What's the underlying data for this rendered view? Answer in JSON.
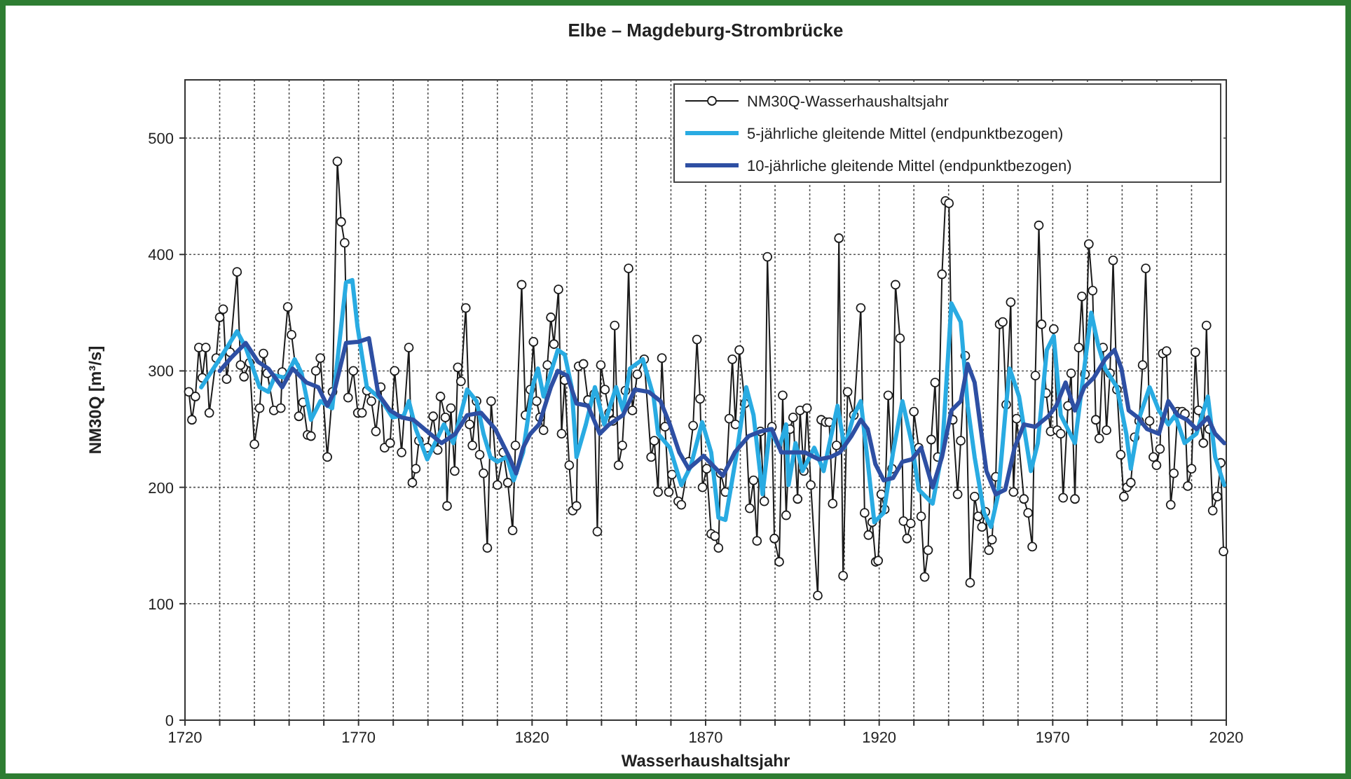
{
  "chart_data": {
    "type": "line",
    "title": "Elbe – Magdeburg-Strombrücke",
    "xlabel": "Wasserhaushaltsjahr",
    "ylabel": "NM30Q [m³/s]",
    "xlim": [
      1720,
      2020
    ],
    "xticks": [
      1720,
      {
        "value": 1730,
        "label": null
      },
      {
        "value": 1740,
        "label": null
      },
      {
        "value": 1750,
        "label": null
      },
      {
        "value": 1760,
        "label": null
      },
      1770,
      {
        "value": 1780,
        "label": null
      },
      {
        "value": 1790,
        "label": null
      },
      {
        "value": 1800,
        "label": null
      },
      {
        "value": 1810,
        "label": null
      },
      1820,
      {
        "value": 1830,
        "label": null
      },
      {
        "value": 1840,
        "label": null
      },
      {
        "value": 1850,
        "label": null
      },
      {
        "value": 1860,
        "label": null
      },
      1870,
      {
        "value": 1880,
        "label": null
      },
      {
        "value": 1890,
        "label": null
      },
      {
        "value": 1900,
        "label": null
      },
      {
        "value": 1910,
        "label": null
      },
      1920,
      {
        "value": 1930,
        "label": null
      },
      {
        "value": 1940,
        "label": null
      },
      {
        "value": 1950,
        "label": null
      },
      {
        "value": 1960,
        "label": null
      },
      1970,
      {
        "value": 1980,
        "label": null
      },
      {
        "value": 1990,
        "label": null
      },
      {
        "value": 2000,
        "label": null
      },
      {
        "value": 2010,
        "label": null
      },
      2020
    ],
    "ylim": [
      0,
      550
    ],
    "yticks": [
      0,
      100,
      200,
      300,
      400,
      500
    ],
    "grid": true,
    "legend": "top right",
    "series": [
      {
        "name": "NM30Q-Wasserhaushaltsjahr",
        "color": "#1a1a1a",
        "marker": "circle",
        "x": [
          1721.1,
          1722,
          1723,
          1724,
          1725,
          1726,
          1727,
          1729,
          1730,
          1731,
          1732,
          1733,
          1735,
          1736,
          1737,
          1738.6,
          1740,
          1741.5,
          1742.6,
          1743.7,
          1745.6,
          1747.6,
          1748,
          1749.6,
          1750.7,
          1751.8,
          1752.8,
          1754,
          1755.3,
          1756.3,
          1757.7,
          1759,
          1761,
          1762.5,
          1763.9,
          1765,
          1766,
          1767,
          1768.5,
          1769.8,
          1771,
          1772.4,
          1773.7,
          1775,
          1776.4,
          1777.5,
          1779.1,
          1780.4,
          1782.4,
          1784.5,
          1785.5,
          1786.5,
          1787.4,
          1789.8,
          1791.5,
          1792.8,
          1793.6,
          1795,
          1795.5,
          1796.6,
          1797.7,
          1798.6,
          1799.5,
          1800.9,
          1802,
          1802.8,
          1804,
          1804.9,
          1806,
          1807.1,
          1808.2,
          1810,
          1811.7,
          1813,
          1814.4,
          1815.2,
          1817,
          1818.1,
          1819.5,
          1820.4,
          1821.3,
          1822.3,
          1823.3,
          1824.4,
          1825.4,
          1826.3,
          1827.6,
          1828.5,
          1829.4,
          1830.7,
          1831.7,
          1832.8,
          1833.4,
          1834.8,
          1836.1,
          1837.9,
          1838.8,
          1839.8,
          1841,
          1842.2,
          1843.3,
          1843.8,
          1844.9,
          1846,
          1846.9,
          1847.8,
          1848.9,
          1850.3,
          1852.3,
          1854.3,
          1855.2,
          1856.3,
          1857.4,
          1858.3,
          1859.4,
          1860.3,
          1862.1,
          1863,
          1865.1,
          1866.4,
          1867.5,
          1868.4,
          1869.1,
          1870.3,
          1871.6,
          1872.7,
          1873.7,
          1874.3,
          1875.7,
          1876.8,
          1877.7,
          1878.6,
          1879.7,
          1881.3,
          1882.7,
          1883.8,
          1884.8,
          1885.8,
          1886.9,
          1887.8,
          1889.1,
          1889.8,
          1891.2,
          1892.2,
          1893.2,
          1894.3,
          1895.2,
          1896.5,
          1897.2,
          1898.3,
          1899.2,
          1900.3,
          1902.3,
          1903.3,
          1904.6,
          1905.6,
          1906.6,
          1907.7,
          1908.4,
          1909.6,
          1910.9,
          1912.7,
          1914.7,
          1915.8,
          1916.9,
          1918,
          1919,
          1919.7,
          1920.6,
          1921.6,
          1922.6,
          1923.7,
          1924.7,
          1926,
          1927,
          1928,
          1929.1,
          1930,
          1931.4,
          1932.1,
          1933.1,
          1934.1,
          1935,
          1936.1,
          1936.9,
          1938.1,
          1939.1,
          1940.1,
          1941.2,
          1942.6,
          1943.5,
          1944.8,
          1946.2,
          1947.5,
          1948.5,
          1949.6,
          1950.6,
          1951.6,
          1952.5,
          1953.6,
          1954.7,
          1955.6,
          1956.6,
          1957.9,
          1958.7,
          1959.6,
          1961.7,
          1962.9,
          1964.1,
          1965,
          1966,
          1966.8,
          1968.1,
          1969.4,
          1970.3,
          1971.3,
          1972.3,
          1973,
          1974.4,
          1975.3,
          1976.4,
          1977.5,
          1978.4,
          1979.3,
          1980.4,
          1981.5,
          1982.4,
          1983.4,
          1984.5,
          1985.5,
          1986.5,
          1987.4,
          1988.5,
          1989.6,
          1990.5,
          1991.4,
          1992.5,
          1993.6,
          1994.9,
          1995.9,
          1996.8,
          1997.9,
          1999,
          1999.9,
          2000.9,
          2001.7,
          2002.8,
          2004,
          2004.9,
          2006,
          2007.3,
          2008.1,
          2008.9,
          2010,
          2011.1,
          2012,
          2013.4,
          2014.3,
          2015.1,
          2016.1,
          2017.4,
          2018.4,
          2019.2
        ],
        "values": [
          282,
          258,
          278,
          320,
          294,
          320,
          264,
          311,
          346,
          353,
          293,
          316,
          385,
          305,
          295,
          307,
          237,
          268,
          315,
          298,
          266,
          268,
          299,
          355,
          331,
          304,
          261,
          273,
          245,
          244,
          300,
          311,
          226,
          282,
          480,
          428,
          410,
          277,
          300,
          264,
          264,
          283,
          274,
          248,
          286,
          234,
          238,
          300,
          230,
          320,
          204,
          216,
          240,
          234,
          261,
          232,
          278,
          260,
          184,
          268,
          214,
          303,
          291,
          354,
          254,
          236,
          274,
          228,
          212,
          148,
          274,
          202,
          230,
          204,
          163,
          236,
          374,
          262,
          284,
          325,
          274,
          260,
          249,
          305,
          346,
          323,
          370,
          246,
          292,
          219,
          180,
          184,
          304,
          306,
          275,
          280,
          162,
          305,
          284,
          264,
          257,
          339,
          219,
          236,
          283,
          388,
          266,
          297,
          310,
          226,
          240,
          196,
          311,
          252,
          196,
          211,
          188,
          185,
          222,
          253,
          327,
          276,
          200,
          216,
          160,
          158,
          148,
          212,
          196,
          259,
          310,
          254,
          318,
          272,
          182,
          206,
          154,
          248,
          188,
          398,
          252,
          156,
          136,
          279,
          176,
          250,
          260,
          190,
          266,
          214,
          268,
          202,
          107,
          258,
          256,
          256,
          186,
          236,
          414,
          124,
          282,
          262,
          354,
          178,
          159,
          170,
          136,
          137,
          194,
          181,
          279,
          216,
          374,
          328,
          171,
          156,
          169,
          265,
          234,
          175,
          123,
          146,
          241,
          290,
          226,
          383,
          446,
          444,
          258,
          194,
          240,
          313,
          118,
          192,
          175,
          166,
          179,
          146,
          155,
          209,
          340,
          342,
          271,
          359,
          196,
          259,
          190,
          178,
          149,
          296,
          425,
          340,
          281,
          248,
          336,
          249,
          246,
          191,
          270,
          298,
          190,
          320,
          364,
          297,
          409,
          369,
          258,
          242,
          320,
          249,
          298,
          395,
          284,
          228,
          192,
          200,
          204,
          243,
          257,
          305,
          388,
          257,
          226,
          219,
          233,
          315,
          317,
          185,
          212,
          265,
          265,
          263,
          201,
          216,
          316,
          266,
          238,
          339,
          250,
          180,
          192,
          221,
          145
        ]
      },
      {
        "name": "5-jährliche gleitende Mittel (endpunktbezogen)",
        "color": "#29abe2",
        "marker": "none",
        "x": [
          1724.7,
          1730.8,
          1735,
          1737.5,
          1741.5,
          1744,
          1746,
          1749,
          1751.6,
          1753.6,
          1756.3,
          1759,
          1762.4,
          1766.4,
          1768.2,
          1769.7,
          1772.4,
          1776.4,
          1779.8,
          1783.1,
          1784.5,
          1786.5,
          1789.8,
          1794.6,
          1797.3,
          1801.3,
          1804,
          1806,
          1808,
          1810,
          1812.7,
          1814.7,
          1817.4,
          1820.1,
          1821.7,
          1823.3,
          1827.4,
          1829.4,
          1831.4,
          1832.8,
          1835.5,
          1838.1,
          1840.8,
          1844.2,
          1846.2,
          1848.2,
          1851.9,
          1855,
          1856.3,
          1859.7,
          1863,
          1865.7,
          1869,
          1871.6,
          1873.7,
          1875.7,
          1879,
          1881.7,
          1883.8,
          1885.8,
          1886.4,
          1888.5,
          1891.2,
          1893.2,
          1893.9,
          1895.9,
          1897.9,
          1901.3,
          1904,
          1908,
          1910,
          1912.7,
          1914.7,
          1916.7,
          1918.6,
          1921.3,
          1924,
          1926.7,
          1929.4,
          1931.4,
          1935.4,
          1938.1,
          1940.8,
          1943.5,
          1945.5,
          1947.5,
          1950.2,
          1952.2,
          1954.3,
          1956.3,
          1957.6,
          1960.3,
          1963.7,
          1965.7,
          1968.3,
          1970.3,
          1972.3,
          1976.4,
          1978.4,
          1981.1,
          1983.1,
          1985.1,
          1988.5,
          1991.2,
          1992.5,
          1995.2,
          1997.9,
          2000.6,
          2003.3,
          2005.3,
          2008,
          2011.4,
          2014.7,
          2016.8,
          2019.4
        ],
        "values": [
          286,
          314,
          334,
          320,
          286,
          282,
          296,
          294,
          310,
          298,
          258,
          274,
          268,
          376,
          378,
          338,
          286,
          276,
          260,
          262,
          274,
          250,
          224,
          254,
          238,
          284,
          274,
          246,
          226,
          222,
          226,
          206,
          230,
          286,
          302,
          278,
          318,
          314,
          286,
          226,
          254,
          286,
          254,
          286,
          266,
          302,
          310,
          278,
          246,
          234,
          202,
          218,
          256,
          230,
          174,
          172,
          230,
          286,
          262,
          210,
          194,
          250,
          234,
          254,
          202,
          238,
          214,
          234,
          214,
          270,
          234,
          262,
          274,
          222,
          170,
          178,
          230,
          274,
          238,
          198,
          186,
          230,
          358,
          342,
          270,
          226,
          178,
          166,
          194,
          262,
          302,
          278,
          214,
          238,
          318,
          330,
          262,
          238,
          286,
          350,
          322,
          302,
          286,
          246,
          216,
          262,
          286,
          266,
          254,
          262,
          238,
          246,
          278,
          226,
          202
        ]
      },
      {
        "name": "10-jährliche gleitende Mittel (endpunktbezogen)",
        "color": "#2e4fa3",
        "marker": "none",
        "x": [
          1730,
          1733.5,
          1737.5,
          1741,
          1744,
          1748,
          1751,
          1755,
          1758.4,
          1761,
          1763,
          1766.4,
          1770,
          1773,
          1775.7,
          1779.1,
          1782.4,
          1785.8,
          1789.8,
          1793.9,
          1797.9,
          1801.3,
          1805.3,
          1809.4,
          1813.4,
          1815.4,
          1817.4,
          1819.5,
          1822,
          1825.4,
          1827.4,
          1830.1,
          1832.8,
          1836.1,
          1839.5,
          1842.2,
          1846.2,
          1849.6,
          1853.6,
          1857,
          1859.7,
          1862.4,
          1865.1,
          1869.4,
          1873,
          1875,
          1878.4,
          1882.4,
          1885.8,
          1889.1,
          1891.8,
          1895.2,
          1898.6,
          1902.6,
          1906,
          1908.7,
          1912,
          1914.7,
          1916.7,
          1918.9,
          1921.3,
          1924,
          1926.7,
          1929.4,
          1932.1,
          1935.4,
          1938.1,
          1940.8,
          1943.5,
          1945.5,
          1947.5,
          1950.9,
          1953.6,
          1956.3,
          1959,
          1961.7,
          1965,
          1968.7,
          1971,
          1973.7,
          1976.4,
          1979.1,
          1981.8,
          1985.1,
          1987.8,
          1989.8,
          1991.9,
          1994.5,
          1997.2,
          2000.6,
          2003.3,
          2006,
          2008.7,
          2011.4,
          2014.7,
          2016.8,
          2019.4
        ],
        "values": [
          300,
          312,
          324,
          308,
          302,
          286,
          302,
          290,
          286,
          270,
          282,
          324,
          325,
          328,
          280,
          266,
          260,
          258,
          248,
          238,
          246,
          262,
          264,
          250,
          226,
          212,
          234,
          246,
          254,
          286,
          300,
          296,
          272,
          270,
          246,
          254,
          262,
          284,
          282,
          274,
          254,
          230,
          216,
          227,
          216,
          210,
          230,
          244,
          248,
          250,
          230,
          230,
          230,
          224,
          226,
          230,
          244,
          258,
          250,
          220,
          206,
          208,
          222,
          224,
          234,
          200,
          226,
          266,
          274,
          306,
          290,
          214,
          194,
          198,
          234,
          254,
          252,
          261,
          270,
          290,
          266,
          286,
          294,
          310,
          318,
          302,
          266,
          260,
          250,
          246,
          274,
          262,
          258,
          250,
          260,
          246,
          238
        ]
      }
    ]
  }
}
